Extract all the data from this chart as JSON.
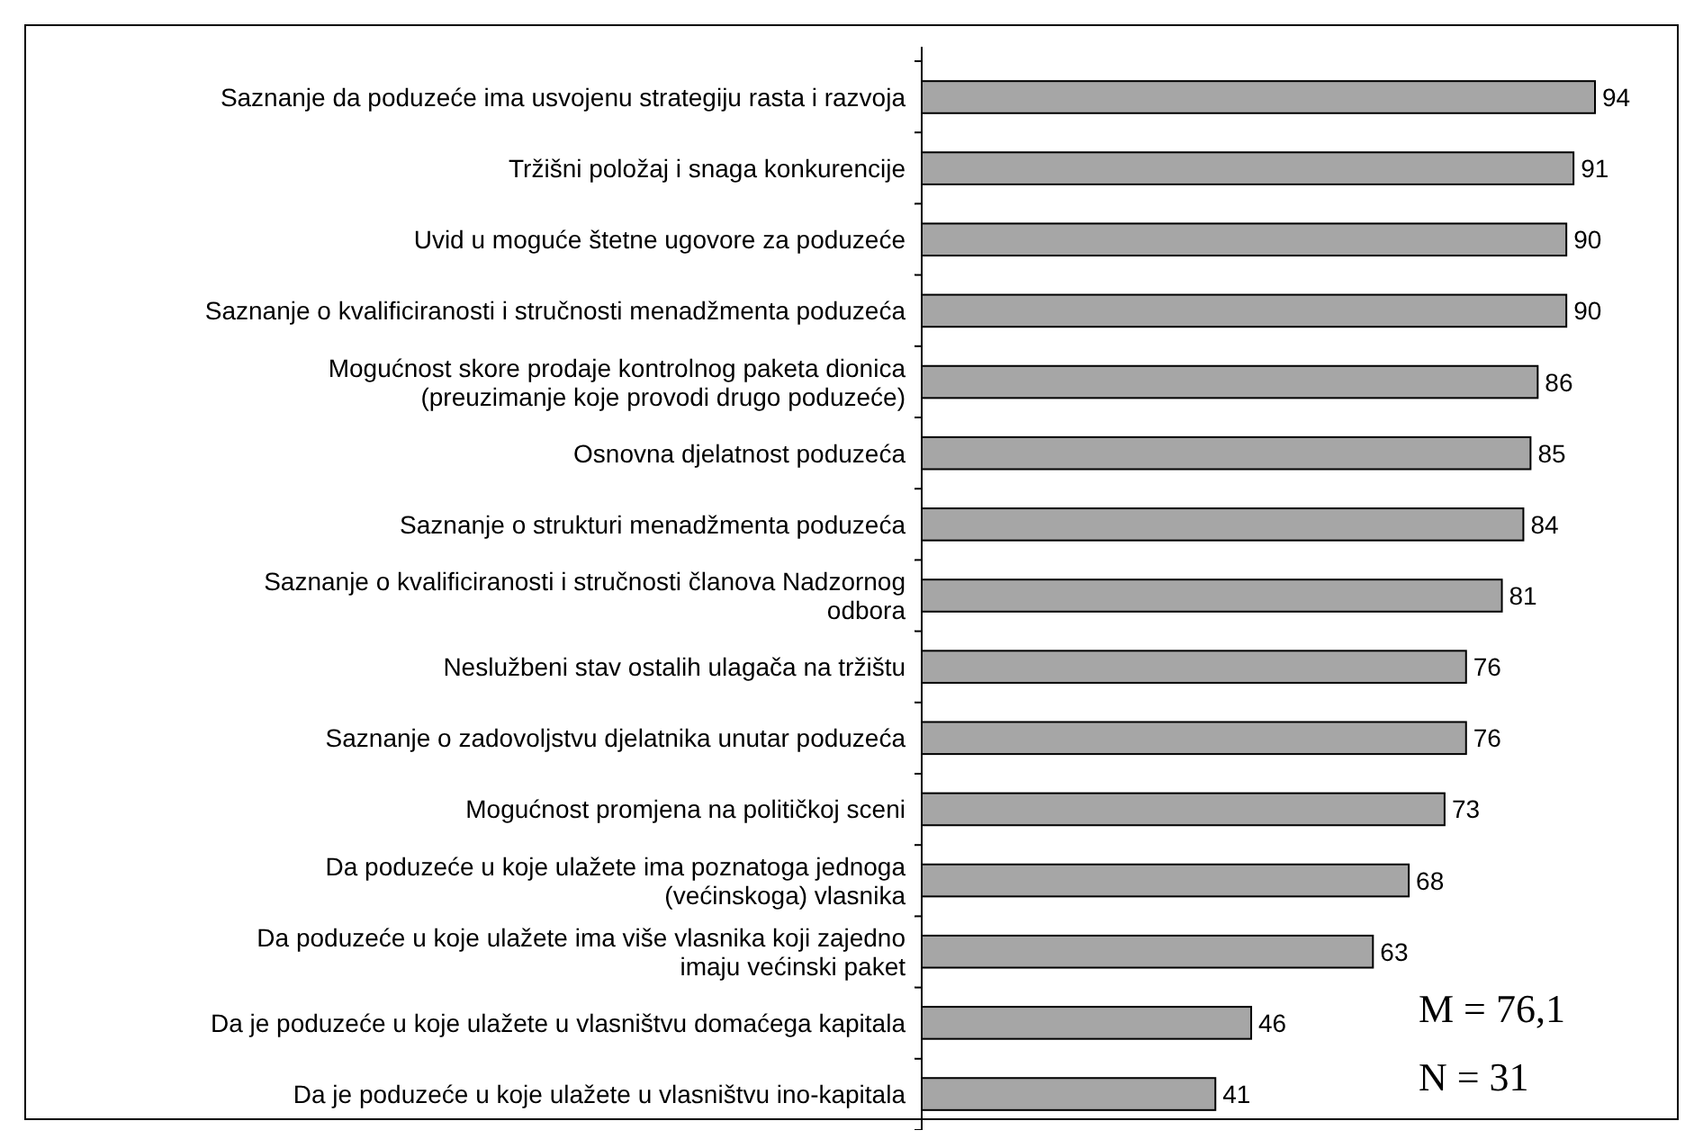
{
  "chart_data": {
    "type": "bar",
    "orientation": "horizontal",
    "data_labels": true,
    "color": "#a6a6a6",
    "categories": [
      "Saznanje da poduzeće ima usvojenu strategiju rasta i razvoja",
      "Tržišni položaj i snaga konkurencije",
      "Uvid u moguće štetne ugovore za poduzeće",
      "Saznanje o kvalificiranosti i stručnosti menadžmenta poduzeća",
      "Mogućnost skore prodaje kontrolnog paketa dionica (preuzimanje koje provodi drugo poduzeće)",
      "Osnovna djelatnost poduzeća",
      "Saznanje o strukturi menadžmenta poduzeća",
      "Saznanje o kvalificiranosti i stručnosti članova Nadzornog odbora",
      "Neslužbeni stav ostalih ulagača na tržištu",
      "Saznanje o zadovoljstvu djelatnika unutar poduzeća",
      "Mogućnost promjena na političkoj sceni",
      "Da poduzeće u koje ulažete ima poznatoga jednoga (većinskoga) vlasnika",
      "Da poduzeće u koje ulažete ima više vlasnika koji zajedno imaju većinski paket",
      "Da je poduzeće u koje ulažete u vlasništvu domaćega kapitala",
      "Da je poduzeće u koje ulažete u vlasništvu ino-kapitala"
    ],
    "values": [
      94,
      91,
      90,
      90,
      86,
      85,
      84,
      81,
      76,
      76,
      73,
      68,
      63,
      46,
      41
    ],
    "annotations": [
      "M = 76,1",
      "N = 31"
    ]
  }
}
